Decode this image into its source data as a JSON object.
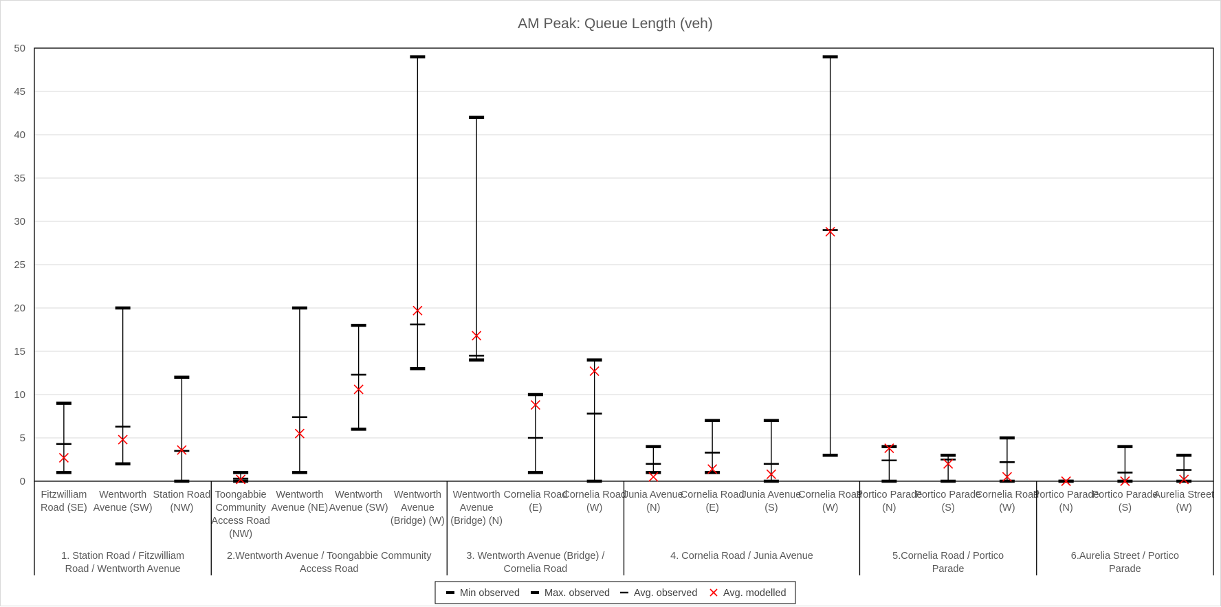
{
  "chart_data": {
    "type": "error-bar",
    "title": "AM Peak: Queue Length (veh)",
    "xlabel": "",
    "ylabel": "",
    "ylim": [
      0,
      50
    ],
    "yticks": [
      0,
      5,
      10,
      15,
      20,
      25,
      30,
      35,
      40,
      45,
      50
    ],
    "grid": true,
    "legend_position": "bottom",
    "legend": [
      "Min observed",
      "Max. observed",
      "Avg. observed",
      "Avg. modelled"
    ],
    "colors": {
      "observed": "#000000",
      "modelled": "#ff0000",
      "grid": "#d9d9d9"
    },
    "groups": [
      {
        "label": "1. Station Road / Fitzwilliam Road / Wentworth Avenue",
        "approaches": [
          {
            "label": "Fitzwilliam Road (SE)",
            "min": 1,
            "max": 9,
            "avg_observed": 4.3,
            "avg_modelled": 2.7
          },
          {
            "label": "Wentworth Avenue (SW)",
            "min": 2,
            "max": 20,
            "avg_observed": 6.3,
            "avg_modelled": 4.8
          },
          {
            "label": "Station Road (NW)",
            "min": 0,
            "max": 12,
            "avg_observed": 3.5,
            "avg_modelled": 3.6
          }
        ]
      },
      {
        "label": "2.Wentworth Avenue / Toongabbie Community Access Road",
        "approaches": [
          {
            "label": "Toongabbie Community Access Road (NW)",
            "min": 0,
            "max": 1,
            "avg_observed": 0.3,
            "avg_modelled": 0.2
          },
          {
            "label": "Wentworth Avenue (NE)",
            "min": 1,
            "max": 20,
            "avg_observed": 7.4,
            "avg_modelled": 5.5
          },
          {
            "label": "Wentworth Avenue (SW)",
            "min": 6,
            "max": 18,
            "avg_observed": 12.3,
            "avg_modelled": 10.6
          },
          {
            "label": "Wentworth Avenue (Bridge) (W)",
            "min": 13,
            "max": 49,
            "avg_observed": 18.1,
            "avg_modelled": 19.7
          }
        ]
      },
      {
        "label": "3. Wentworth Avenue (Bridge) / Cornelia Road",
        "approaches": [
          {
            "label": "Wentworth Avenue (Bridge) (N)",
            "min": 14,
            "max": 42,
            "avg_observed": 14.5,
            "avg_modelled": 16.8
          },
          {
            "label": "Cornelia Road (E)",
            "min": 1,
            "max": 10,
            "avg_observed": 5.0,
            "avg_modelled": 8.8
          },
          {
            "label": "Cornelia Road (W)",
            "min": 0,
            "max": 14,
            "avg_observed": 7.8,
            "avg_modelled": 12.7
          }
        ]
      },
      {
        "label": "4. Cornelia Road / Junia Avenue",
        "approaches": [
          {
            "label": "Junia Avenue (N)",
            "min": 1,
            "max": 4,
            "avg_observed": 2.0,
            "avg_modelled": 0.5
          },
          {
            "label": "Cornelia Road (E)",
            "min": 1,
            "max": 7,
            "avg_observed": 3.3,
            "avg_modelled": 1.4
          },
          {
            "label": "Junia Avenue (S)",
            "min": 0,
            "max": 7,
            "avg_observed": 2.0,
            "avg_modelled": 0.8
          },
          {
            "label": "Cornelia Road (W)",
            "min": 3,
            "max": 49,
            "avg_observed": 29.0,
            "avg_modelled": 28.8
          }
        ]
      },
      {
        "label": "5.Cornelia Road / Portico Parade",
        "approaches": [
          {
            "label": "Portico Parade (N)",
            "min": 0,
            "max": 4,
            "avg_observed": 2.4,
            "avg_modelled": 3.8
          },
          {
            "label": "Portico Parade (S)",
            "min": 0,
            "max": 3,
            "avg_observed": 2.5,
            "avg_modelled": 2.0
          },
          {
            "label": "Cornelia Road (W)",
            "min": 0,
            "max": 5,
            "avg_observed": 2.2,
            "avg_modelled": 0.5
          }
        ]
      },
      {
        "label": "6.Aurelia Street / Portico Parade",
        "approaches": [
          {
            "label": "Portico Parade (N)",
            "min": 0,
            "max": 0,
            "avg_observed": 0,
            "avg_modelled": 0
          },
          {
            "label": "Portico Parade (S)",
            "min": 0,
            "max": 4,
            "avg_observed": 1.0,
            "avg_modelled": 0
          },
          {
            "label": "Aurelia Street (W)",
            "min": 0,
            "max": 3,
            "avg_observed": 1.3,
            "avg_modelled": 0.2
          }
        ]
      }
    ]
  }
}
